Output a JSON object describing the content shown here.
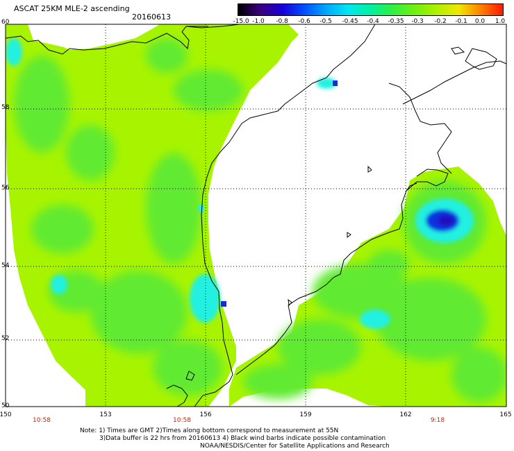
{
  "header": {
    "title": "ASCAT 25KM MLE-2 ascending",
    "date": "20160613"
  },
  "colorbar": {
    "labels": [
      "-15.0",
      "-1.0",
      "-0.8",
      "-0.6",
      "-0.5",
      "-0.45",
      "-0.4",
      "-0.35",
      "-0.3",
      "-0.2",
      "-0.1",
      "0.0",
      "1.0"
    ],
    "colors": [
      "#000000",
      "#3a0080",
      "#1800d8",
      "#0050ff",
      "#00a8ff",
      "#00e8f0",
      "#00f0a0",
      "#30f040",
      "#70f010",
      "#b0f000",
      "#f0e800",
      "#ff8000",
      "#ff1800"
    ]
  },
  "axes": {
    "lat_labels": [
      "60",
      "58",
      "56",
      "54",
      "52",
      "50"
    ],
    "lon_labels": [
      "150",
      "153",
      "156",
      "159",
      "162",
      "165"
    ],
    "time_labels": [
      "10:58",
      "10:58",
      "9:18"
    ]
  },
  "notes": {
    "line1": "Note: 1) Times are GMT 2)Times along bottom correspond to measurement at 55N",
    "line2": "3)Data buffer is 22 hrs from 20160613 4) Black wind barbs indicate possible contamination",
    "line3": "NOAA/NESDIS/Center for Satellite Applications and Research"
  },
  "map_colors": {
    "background": "#a0f000",
    "field_green": "#60ea30",
    "field_lime": "#a8f400",
    "cyan": "#20f0e0",
    "blue": "#1030e0",
    "deep_blue": "#2010c0",
    "coast": "#000000",
    "grid": "#000000"
  }
}
